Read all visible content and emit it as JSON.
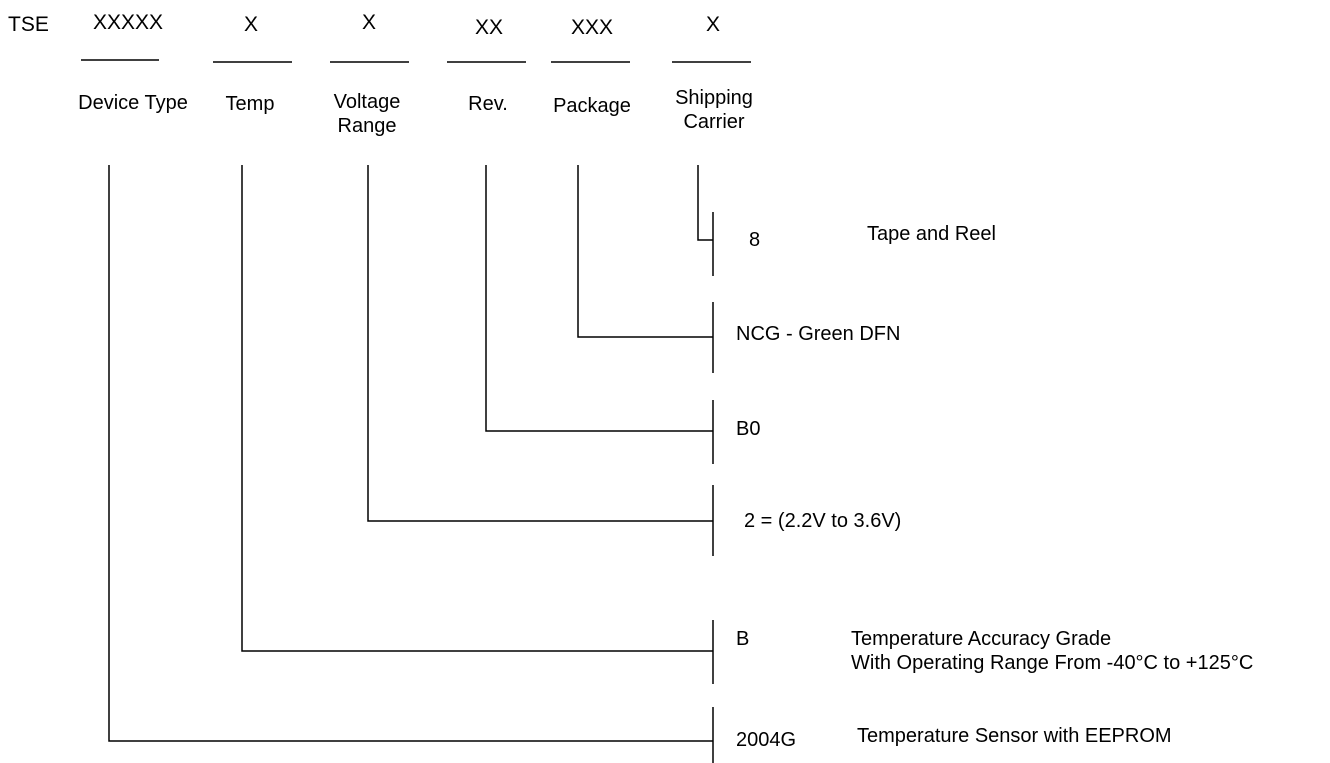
{
  "prefix": "TSE",
  "fields": [
    {
      "code": "XXXXX",
      "label": "Device Type"
    },
    {
      "code": "X",
      "label": "Temp"
    },
    {
      "code": "X",
      "label": "Voltage\nRange"
    },
    {
      "code": "XX",
      "label": "Rev."
    },
    {
      "code": "XXX",
      "label": "Package"
    },
    {
      "code": "X",
      "label": "Shipping\nCarrier"
    }
  ],
  "options": [
    {
      "code": "8",
      "desc": "Tape and Reel"
    },
    {
      "code": "NCG - Green DFN",
      "desc": ""
    },
    {
      "code": "B0",
      "desc": ""
    },
    {
      "code": "2 = (2.2V to 3.6V)",
      "desc": ""
    },
    {
      "code": "B",
      "desc_line1": "Temperature Accuracy Grade",
      "desc_line2": "With Operating Range From -40°C to +125°C"
    },
    {
      "code": "2004G",
      "desc": "Temperature Sensor with EEPROM"
    }
  ]
}
